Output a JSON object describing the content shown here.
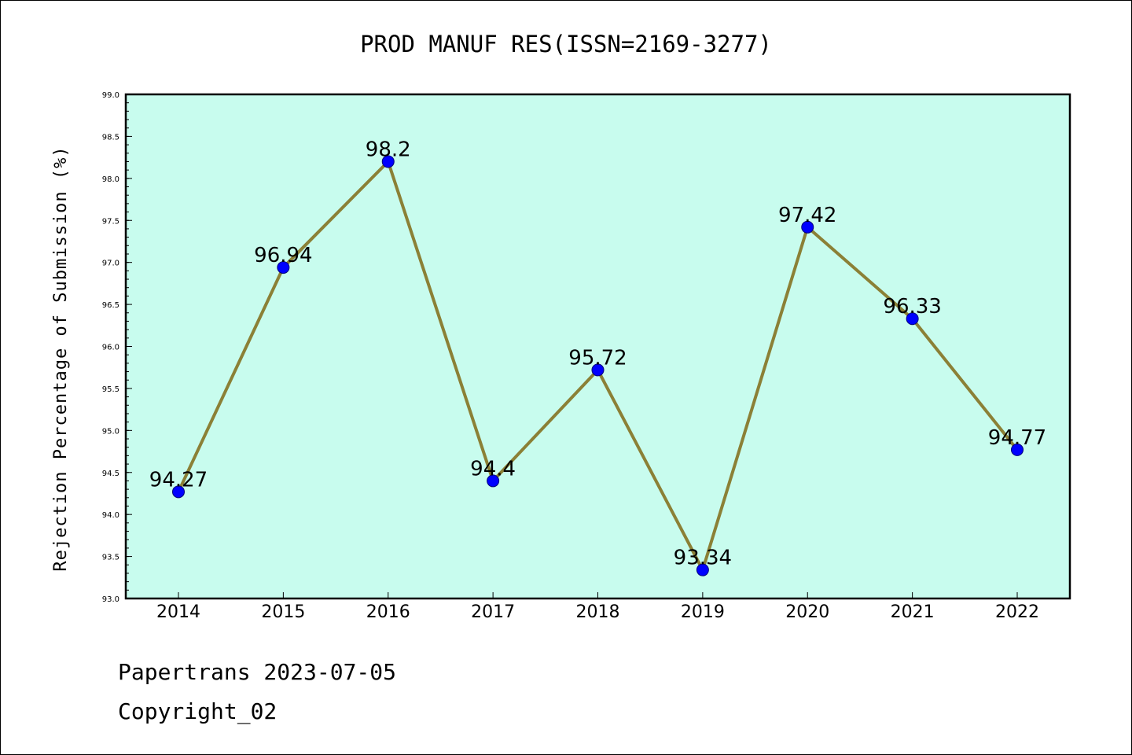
{
  "chart_data": {
    "type": "line",
    "title": "PROD MANUF RES(ISSN=2169-3277)",
    "xlabel": "",
    "ylabel": "Rejection Percentage of Submission (%)",
    "categories": [
      "2014",
      "2015",
      "2016",
      "2017",
      "2018",
      "2019",
      "2020",
      "2021",
      "2022"
    ],
    "values": [
      94.27,
      96.94,
      98.2,
      94.4,
      95.72,
      93.34,
      97.42,
      96.33,
      94.77
    ],
    "value_labels": [
      "94.27",
      "96.94",
      "98.2",
      "94.4",
      "95.72",
      "93.34",
      "97.42",
      "96.33",
      "94.77"
    ],
    "ylim": [
      93.0,
      99.0
    ],
    "yticks": [
      "93.0",
      "93.5",
      "94.0",
      "94.5",
      "95.0",
      "95.5",
      "96.0",
      "96.5",
      "97.0",
      "97.5",
      "98.0",
      "98.5",
      "99.0"
    ],
    "grid": false,
    "colors": {
      "plot_background": "#c8fcee",
      "line": "#8b8036",
      "marker": "#0000ff",
      "marker_edge": "#00007a"
    }
  },
  "footer": {
    "line1": "Papertrans 2023-07-05",
    "line2": "Copyright_02"
  }
}
